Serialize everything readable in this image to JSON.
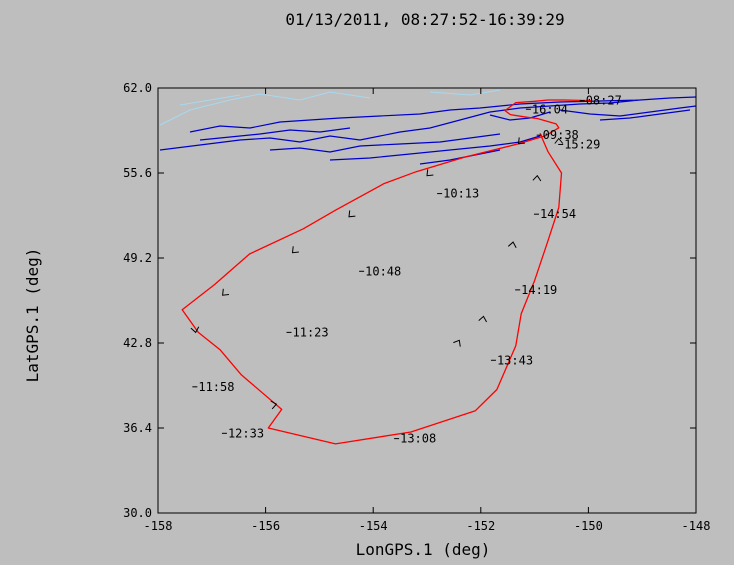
{
  "chart_data": {
    "type": "line",
    "title": "01/13/2011, 08:27:52-16:39:29",
    "xlabel": "LonGPS.1 (deg)",
    "ylabel": "LatGPS.1 (deg)",
    "xlim": [
      -158,
      -148
    ],
    "ylim": [
      30.0,
      62.0
    ],
    "x_ticks": [
      "-158",
      "-156",
      "-154",
      "-152",
      "-150",
      "-148"
    ],
    "y_ticks": [
      "30.0",
      "36.4",
      "42.8",
      "49.2",
      "55.6",
      "62.0"
    ],
    "grid": false,
    "track_color": "#ff0000",
    "coast_color": "#0000cc",
    "river_color": "#a8d8f0",
    "track": [
      [
        -149.94,
        61.05
      ],
      [
        -150.45,
        61.1
      ],
      [
        -150.75,
        61.1
      ],
      [
        -151.0,
        61.0
      ],
      [
        -151.35,
        60.9
      ],
      [
        -151.55,
        60.3
      ],
      [
        -151.45,
        60.0
      ],
      [
        -151.15,
        59.8
      ],
      [
        -150.95,
        59.7
      ],
      [
        -150.6,
        59.3
      ],
      [
        -150.55,
        59.0
      ],
      [
        -150.8,
        58.4
      ],
      [
        -151.3,
        57.8
      ],
      [
        -152.3,
        56.8
      ],
      [
        -153.2,
        55.7
      ],
      [
        -153.8,
        54.8
      ],
      [
        -154.7,
        52.8
      ],
      [
        -155.3,
        51.4
      ],
      [
        -156.3,
        49.5
      ],
      [
        -156.95,
        47.2
      ],
      [
        -157.55,
        45.3
      ],
      [
        -157.25,
        43.6
      ],
      [
        -156.85,
        42.3
      ],
      [
        -156.45,
        40.4
      ],
      [
        -155.7,
        37.8
      ],
      [
        -155.95,
        36.4
      ],
      [
        -154.7,
        35.2
      ],
      [
        -153.3,
        36.1
      ],
      [
        -152.1,
        37.7
      ],
      [
        -151.7,
        39.3
      ],
      [
        -151.35,
        42.6
      ],
      [
        -151.25,
        45.0
      ],
      [
        -151.0,
        47.5
      ],
      [
        -150.75,
        50.5
      ],
      [
        -150.55,
        53.0
      ],
      [
        -150.5,
        55.6
      ],
      [
        -150.75,
        57.2
      ],
      [
        -150.9,
        58.6
      ]
    ],
    "annotations": [
      {
        "label": "08:27",
        "x": -150.05,
        "y": 61.05
      },
      {
        "label": "16:04",
        "x": -151.05,
        "y": 60.4
      },
      {
        "label": "09:38",
        "x": -150.85,
        "y": 58.45
      },
      {
        "label": "15:29",
        "x": -150.45,
        "y": 57.75
      },
      {
        "label": "10:13",
        "x": -152.7,
        "y": 54.05
      },
      {
        "label": "14:54",
        "x": -150.9,
        "y": 52.5
      },
      {
        "label": "10:48",
        "x": -154.15,
        "y": 48.2
      },
      {
        "label": "14:19",
        "x": -151.25,
        "y": 46.8
      },
      {
        "label": "11:23",
        "x": -155.5,
        "y": 43.6
      },
      {
        "label": "13:43",
        "x": -151.7,
        "y": 41.5
      },
      {
        "label": "11:58",
        "x": -157.25,
        "y": 39.5
      },
      {
        "label": "13:08",
        "x": -153.5,
        "y": 35.6
      },
      {
        "label": "12:33",
        "x": -156.7,
        "y": 36.0
      }
    ],
    "direction_markers": [
      {
        "x": -151.3,
        "y": 57.8,
        "angle": 225
      },
      {
        "x": -153.0,
        "y": 55.4,
        "angle": 225
      },
      {
        "x": -154.45,
        "y": 52.3,
        "angle": 225
      },
      {
        "x": -155.5,
        "y": 49.6,
        "angle": 225
      },
      {
        "x": -156.8,
        "y": 46.4,
        "angle": 225
      },
      {
        "x": -157.3,
        "y": 43.6,
        "angle": 280
      },
      {
        "x": -155.8,
        "y": 38.2,
        "angle": 10
      },
      {
        "x": -152.4,
        "y": 43.0,
        "angle": 60
      },
      {
        "x": -151.95,
        "y": 44.8,
        "angle": 80
      },
      {
        "x": -151.4,
        "y": 50.4,
        "angle": 80
      },
      {
        "x": -150.95,
        "y": 55.4,
        "angle": 85
      },
      {
        "x": -150.55,
        "y": 58.2,
        "angle": 90
      }
    ]
  }
}
